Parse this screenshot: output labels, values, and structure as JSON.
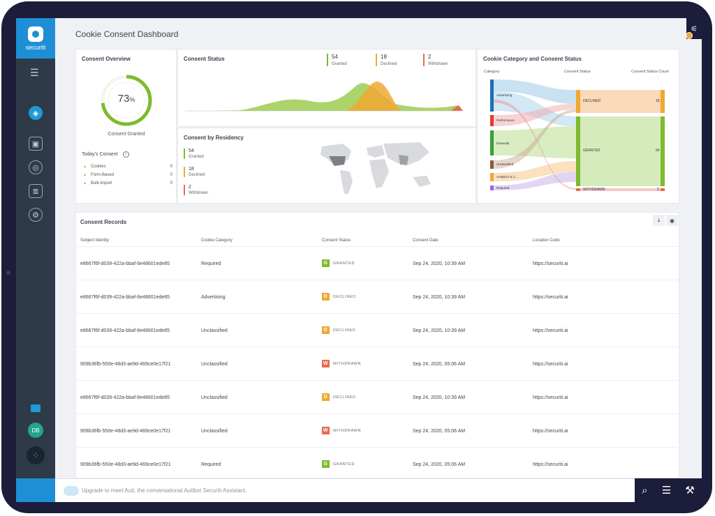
{
  "app": {
    "logo_text": "securiti",
    "page_title": "Cookie Consent Dashboard"
  },
  "sidebar": {
    "menu_icon": "☰",
    "items": [
      {
        "name": "dashboard-icon",
        "glyph": "◈"
      },
      {
        "name": "report-icon",
        "glyph": "▣"
      },
      {
        "name": "target-icon",
        "glyph": "◎"
      },
      {
        "name": "document-icon",
        "glyph": "≣"
      },
      {
        "name": "gear-icon",
        "glyph": "⚙"
      }
    ],
    "avatar": "DB",
    "apps_icon": "⁘"
  },
  "overview": {
    "title": "Consent Overview",
    "percent": "73",
    "percent_sign": "%",
    "gauge_fraction": 0.73,
    "granted_label": "Consent Granted",
    "today_title": "Today's Consent",
    "today_rows": [
      {
        "label": "Cookies",
        "value": "0"
      },
      {
        "label": "Form-Based",
        "value": "0"
      },
      {
        "label": "Bulk-Import",
        "value": "0"
      }
    ]
  },
  "status": {
    "title": "Consent Status",
    "stats": [
      {
        "value": "54",
        "label": "Granted",
        "color": "#7dbb2d"
      },
      {
        "value": "18",
        "label": "Declined",
        "color": "#f0a830"
      },
      {
        "value": "2",
        "label": "Withdrawn",
        "color": "#e86a4f"
      }
    ]
  },
  "residency": {
    "title": "Consent by Residency",
    "stats": [
      {
        "value": "54",
        "label": "Granted",
        "color": "#7dbb2d"
      },
      {
        "value": "18",
        "label": "Declined",
        "color": "#f0a830"
      },
      {
        "value": "2",
        "label": "Withdrawn",
        "color": "#e86a4f"
      }
    ]
  },
  "sankey": {
    "title": "Cookie Category and Consent Status",
    "headers": [
      "Category",
      "Consent Status",
      "Consent Status Count"
    ],
    "categories": [
      "Advertising",
      "Performance",
      "Essential",
      "Unclassified",
      "Analytics & C...",
      "Required"
    ],
    "statuses": [
      {
        "label": "DECLINED",
        "count": "18"
      },
      {
        "label": "GRANTED",
        "count": "54"
      },
      {
        "label": "WITHDRAWN",
        "count": "2"
      }
    ]
  },
  "records": {
    "title": "Consent Records",
    "download_icon": "⤓",
    "hide_icon": "◉",
    "columns": [
      "Subject Identity",
      "Cookie Category",
      "Consent Status",
      "Consent Date",
      "Location Code"
    ],
    "rows": [
      {
        "subject": "e8667f6f-d039-422a-bbaf-6e48601ede85",
        "category": "Required",
        "letter": "G",
        "status": "GRANTED",
        "date": "Sep 24, 2020, 10:39 AM",
        "location": "https://securiti.ai"
      },
      {
        "subject": "e8667f6f-d039-422a-bbaf-6e48601ede85",
        "category": "Advertising",
        "letter": "D",
        "status": "DECLINED",
        "date": "Sep 24, 2020, 10:39 AM",
        "location": "https://securiti.ai"
      },
      {
        "subject": "e8667f6f-d039-422a-bbaf-6e48601ede85",
        "category": "Unclassified",
        "letter": "D",
        "status": "DECLINED",
        "date": "Sep 24, 2020, 10:39 AM",
        "location": "https://securiti.ai"
      },
      {
        "subject": "909b36fb-550e-48d3-ae9d-469ce0e17f21",
        "category": "Unclassified",
        "letter": "W",
        "status": "WITHDRAWN",
        "date": "Sep 24, 2020, 05:06 AM",
        "location": "https://securiti.ai"
      },
      {
        "subject": "e8667f6f-d039-422a-bbaf-6e48601ede85",
        "category": "Unclassified",
        "letter": "D",
        "status": "DECLINED",
        "date": "Sep 24, 2020, 10:39 AM",
        "location": "https://securiti.ai"
      },
      {
        "subject": "909b36fb-550e-48d3-ae9d-469ce0e17f21",
        "category": "Unclassified",
        "letter": "W",
        "status": "WITHDRAWN",
        "date": "Sep 24, 2020, 05:06 AM",
        "location": "https://securiti.ai"
      },
      {
        "subject": "909b36fb-550e-48d3-ae9d-469ce0e17f21",
        "category": "Required",
        "letter": "G",
        "status": "GRANTED",
        "date": "Sep 24, 2020, 05:06 AM",
        "location": "https://securiti.ai"
      }
    ]
  },
  "status_colors": {
    "GRANTED": "#7dbb2d",
    "DECLINED": "#f0a830",
    "WITHDRAWN": "#e86a4f"
  },
  "bottom": {
    "upgrade_text": "Upgrade to meet Auti, the conversational Autibot Securiti Assistant.",
    "tools": [
      "search-icon",
      "filter-icon",
      "wrench-icon"
    ]
  }
}
